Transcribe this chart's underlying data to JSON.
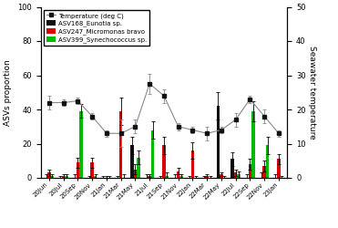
{
  "categories": [
    "20Jun",
    "20Jul",
    "20Sep",
    "20Nov",
    "21Jan",
    "21Mar",
    "21May",
    "21Jul",
    "21Sep",
    "21Nov",
    "22Jan",
    "22Mar",
    "22May",
    "22Jul",
    "22Sep",
    "22Nov",
    "23Jan"
  ],
  "asv168": [
    0,
    0,
    0,
    0,
    0,
    0,
    19,
    0,
    0,
    0,
    0,
    0,
    42,
    11,
    0,
    0,
    0
  ],
  "asv168_err": [
    2,
    1,
    2,
    1,
    1,
    1,
    5,
    2,
    1,
    2,
    1,
    1,
    8,
    4,
    2,
    3,
    2
  ],
  "asv247": [
    3,
    1,
    9,
    9,
    0,
    39,
    5,
    1,
    19,
    4,
    16,
    1,
    2,
    3,
    8,
    7,
    11
  ],
  "asv247_err": [
    2,
    1,
    3,
    3,
    1,
    8,
    3,
    1,
    5,
    2,
    5,
    1,
    1,
    2,
    3,
    3,
    3
  ],
  "asv399": [
    1,
    1,
    39,
    1,
    0,
    0,
    12,
    28,
    1,
    1,
    0,
    0,
    0,
    2,
    39,
    19,
    0
  ],
  "asv399_err": [
    1,
    1,
    4,
    1,
    1,
    2,
    4,
    5,
    2,
    1,
    1,
    1,
    1,
    2,
    6,
    5,
    1
  ],
  "temperature": [
    22,
    22,
    22.5,
    18,
    13,
    13,
    15,
    27.5,
    24,
    15,
    14,
    13,
    14,
    17,
    23,
    18,
    13
  ],
  "temp_err": [
    2,
    1,
    1,
    1,
    1,
    4,
    2,
    3,
    2,
    1,
    1,
    2,
    1,
    2,
    1,
    2,
    1
  ],
  "ylabel_left": "ASVs proportion",
  "ylabel_right": "Seawater temperature",
  "ylim_left": [
    0,
    100
  ],
  "ylim_right": [
    0,
    50
  ],
  "legend_temp": "Temperature (deg C)",
  "legend_asv168": "ASV168_Eunotia sp.",
  "legend_asv247": "ASV247_Micromonas bravo",
  "legend_asv399": "ASV399_Synechococcus sp.",
  "bar_width": 0.22,
  "colors": {
    "asv168": "#111111",
    "asv247": "#dd0000",
    "asv399": "#00bb00",
    "temp_line": "#888888",
    "temp_marker": "#111111"
  }
}
